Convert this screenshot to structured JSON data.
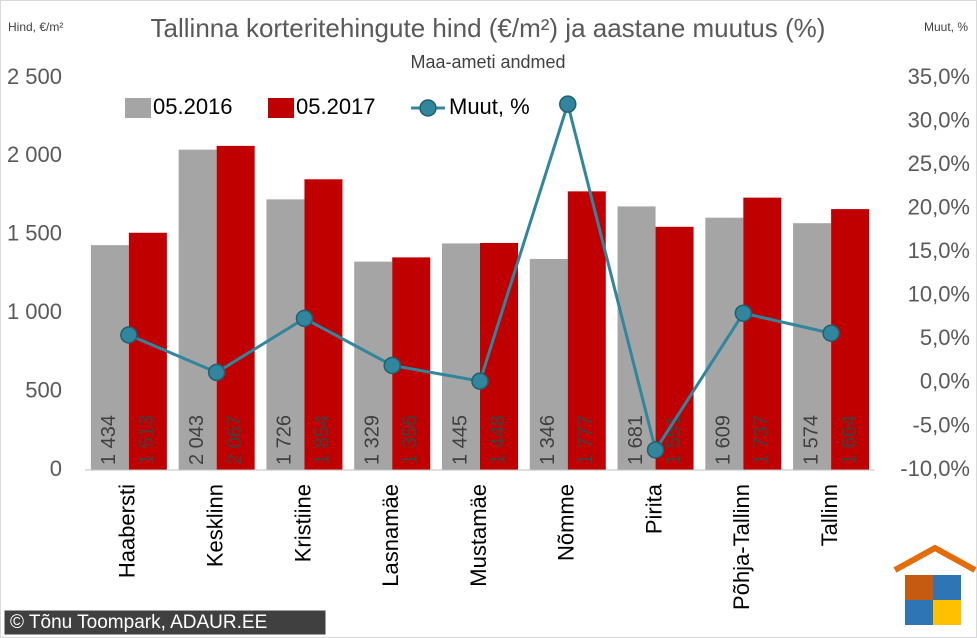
{
  "chart_data": {
    "type": "bar",
    "title": "Tallinna korteritehingute hind (€/m²) ja aastane muutus (%)",
    "subtitle": "Maa-ameti andmed",
    "y_label": "Hind, €/m²",
    "y2_label": "Muut, %",
    "note": "© Tõnu Toompark, ADAUR.EE",
    "categories": [
      "Haabersti",
      "Kesklinn",
      "Kristiine",
      "Lasnamäe",
      "Mustamäe",
      "Nõmme",
      "Pirita",
      "Põhja-Tallinn",
      "Tallinn"
    ],
    "series": [
      {
        "name": "05.2016",
        "color": "#a5a5a5",
        "values": [
          1434,
          2043,
          1726,
          1329,
          1445,
          1346,
          1681,
          1609,
          1574
        ],
        "value_labels": [
          "1 434",
          "2 043",
          "1 726",
          "1 329",
          "1 445",
          "1 346",
          "1 681",
          "1 609",
          "1 574"
        ]
      },
      {
        "name": "05.2017",
        "color": "#c00000",
        "values": [
          1513,
          2067,
          1854,
          1356,
          1448,
          1777,
          1551,
          1737,
          1664
        ],
        "value_labels": [
          "1 513",
          "2 067",
          "1 854",
          "1 356",
          "1 448",
          "1 777",
          "1 551",
          "1 737",
          "1 664"
        ]
      },
      {
        "name": "Muut, %",
        "type": "line",
        "axis": "y2",
        "color": "#31859c",
        "values": [
          5.5,
          1.2,
          7.4,
          2.0,
          0.2,
          32.0,
          -7.7,
          8.0,
          5.7
        ]
      }
    ],
    "ylim": [
      0,
      2500
    ],
    "yticks": [
      0,
      500,
      {
        "value": 1000,
        "label": "1 000"
      },
      {
        "value": 1500,
        "label": "1 500"
      },
      {
        "value": 2000,
        "label": "2 000"
      },
      {
        "value": 2500,
        "label": "2 500"
      }
    ],
    "y2lim": [
      -10,
      35
    ],
    "y2ticks": [
      {
        "value": -10,
        "label": "-10,0%"
      },
      {
        "value": -5,
        "label": "-5,0%"
      },
      {
        "value": 0,
        "label": "0,0%"
      },
      {
        "value": 5,
        "label": "5,0%"
      },
      {
        "value": 10,
        "label": "10,0%"
      },
      {
        "value": 15,
        "label": "15,0%"
      },
      {
        "value": 20,
        "label": "20,0%"
      },
      {
        "value": 25,
        "label": "25,0%"
      },
      {
        "value": 30,
        "label": "30,0%"
      },
      {
        "value": 35,
        "label": "35,0%"
      }
    ],
    "grid": false,
    "legend": "top"
  }
}
